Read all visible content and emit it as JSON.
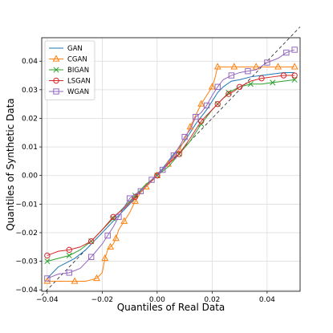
{
  "chart_data": {
    "type": "line",
    "title": "",
    "xlabel": "Quantiles of Real Data",
    "ylabel": "Quantiles of Synthetic Data",
    "xlim": [
      -0.042,
      0.052
    ],
    "ylim": [
      -0.0405,
      0.0482
    ],
    "xticks": [
      -0.04,
      -0.02,
      0.0,
      0.02,
      0.04
    ],
    "xtick_labels": [
      "−0.04",
      "−0.02",
      "0.00",
      "0.02",
      "0.04"
    ],
    "yticks": [
      -0.04,
      -0.03,
      -0.02,
      -0.01,
      0.0,
      0.01,
      0.02,
      0.03,
      0.04
    ],
    "ytick_labels": [
      "−0.04",
      "−0.03",
      "−0.02",
      "−0.01",
      "0.00",
      "0.01",
      "0.02",
      "0.03",
      "0.04"
    ],
    "grid": true,
    "legend_position": "top-left",
    "reference_line": {
      "style": "dashed",
      "color": "#000000",
      "x": [
        -0.042,
        0.052
      ],
      "y": [
        -0.042,
        0.052
      ]
    },
    "series": [
      {
        "name": "GAN",
        "color": "#1f77b4",
        "marker": "none",
        "x": [
          -0.04,
          -0.038,
          -0.036,
          -0.034,
          -0.03,
          -0.026,
          -0.022,
          -0.018,
          -0.014,
          -0.01,
          -0.006,
          -0.002,
          0.002,
          0.006,
          0.01,
          0.014,
          0.018,
          0.02,
          0.022,
          0.024,
          0.027,
          0.03,
          0.034,
          0.038,
          0.042,
          0.046,
          0.05
        ],
        "y": [
          -0.036,
          -0.034,
          -0.032,
          -0.031,
          -0.029,
          -0.026,
          -0.022,
          -0.018,
          -0.014,
          -0.01,
          -0.0055,
          -0.0015,
          0.0025,
          0.0075,
          0.012,
          0.018,
          0.023,
          0.026,
          0.029,
          0.031,
          0.033,
          0.0335,
          0.0345,
          0.035,
          0.0355,
          0.036,
          0.036
        ]
      },
      {
        "name": "CGAN",
        "color": "#ff7f0e",
        "marker": "triangle",
        "x": [
          -0.04,
          -0.034,
          -0.03,
          -0.026,
          -0.022,
          -0.02,
          -0.019,
          -0.018,
          -0.017,
          -0.016,
          -0.015,
          -0.014,
          -0.012,
          -0.01,
          -0.008,
          -0.006,
          -0.004,
          -0.002,
          0.0,
          0.002,
          0.004,
          0.006,
          0.008,
          0.01,
          0.012,
          0.014,
          0.016,
          0.018,
          0.02,
          0.021,
          0.022,
          0.024,
          0.028,
          0.032,
          0.036,
          0.04,
          0.044,
          0.05
        ],
        "y": [
          -0.037,
          -0.037,
          -0.037,
          -0.037,
          -0.036,
          -0.034,
          -0.029,
          -0.026,
          -0.025,
          -0.024,
          -0.022,
          -0.019,
          -0.016,
          -0.013,
          -0.009,
          -0.006,
          -0.004,
          -0.002,
          0.0,
          0.002,
          0.004,
          0.0065,
          0.009,
          0.0125,
          0.017,
          0.021,
          0.025,
          0.028,
          0.031,
          0.034,
          0.038,
          0.038,
          0.038,
          0.038,
          0.038,
          0.038,
          0.038,
          0.038
        ]
      },
      {
        "name": "BIGAN",
        "color": "#2ca02c",
        "marker": "x",
        "x": [
          -0.04,
          -0.036,
          -0.032,
          -0.028,
          -0.024,
          -0.02,
          -0.016,
          -0.012,
          -0.008,
          -0.004,
          0.0,
          0.004,
          0.008,
          0.012,
          0.016,
          0.02,
          0.022,
          0.024,
          0.026,
          0.03,
          0.034,
          0.038,
          0.042,
          0.046,
          0.05
        ],
        "y": [
          -0.03,
          -0.029,
          -0.028,
          -0.026,
          -0.023,
          -0.019,
          -0.015,
          -0.011,
          -0.007,
          -0.003,
          0.0,
          0.003,
          0.0075,
          0.012,
          0.018,
          0.023,
          0.025,
          0.027,
          0.029,
          0.031,
          0.032,
          0.032,
          0.0325,
          0.033,
          0.0335
        ]
      },
      {
        "name": "LSGAN",
        "color": "#d62728",
        "marker": "circle",
        "x": [
          -0.04,
          -0.036,
          -0.032,
          -0.028,
          -0.024,
          -0.02,
          -0.016,
          -0.012,
          -0.008,
          -0.004,
          0.0,
          0.004,
          0.008,
          0.012,
          0.016,
          0.02,
          0.022,
          0.024,
          0.026,
          0.028,
          0.03,
          0.034,
          0.038,
          0.042,
          0.046,
          0.05
        ],
        "y": [
          -0.028,
          -0.0265,
          -0.026,
          -0.025,
          -0.023,
          -0.019,
          -0.0145,
          -0.0115,
          -0.0075,
          -0.0035,
          0.0,
          0.004,
          0.0075,
          0.013,
          0.019,
          0.023,
          0.025,
          0.027,
          0.0285,
          0.0295,
          0.031,
          0.033,
          0.034,
          0.0345,
          0.035,
          0.035
        ]
      },
      {
        "name": "WGAN",
        "color": "#9467bd",
        "marker": "square",
        "x": [
          -0.04,
          -0.036,
          -0.032,
          -0.028,
          -0.024,
          -0.02,
          -0.018,
          -0.016,
          -0.014,
          -0.012,
          -0.01,
          -0.008,
          -0.006,
          -0.004,
          -0.002,
          0.0,
          0.002,
          0.004,
          0.006,
          0.008,
          0.01,
          0.012,
          0.014,
          0.016,
          0.018,
          0.02,
          0.022,
          0.024,
          0.027,
          0.03,
          0.033,
          0.036,
          0.04,
          0.044,
          0.047,
          0.05
        ],
        "y": [
          -0.036,
          -0.0345,
          -0.034,
          -0.0325,
          -0.0285,
          -0.024,
          -0.021,
          -0.018,
          -0.0145,
          -0.011,
          -0.008,
          -0.0065,
          -0.0055,
          -0.0035,
          -0.0015,
          0.0,
          0.002,
          0.0045,
          0.007,
          0.01,
          0.0135,
          0.016,
          0.0205,
          0.022,
          0.0245,
          0.028,
          0.031,
          0.0335,
          0.035,
          0.036,
          0.0365,
          0.037,
          0.0395,
          0.041,
          0.043,
          0.044
        ]
      }
    ]
  }
}
